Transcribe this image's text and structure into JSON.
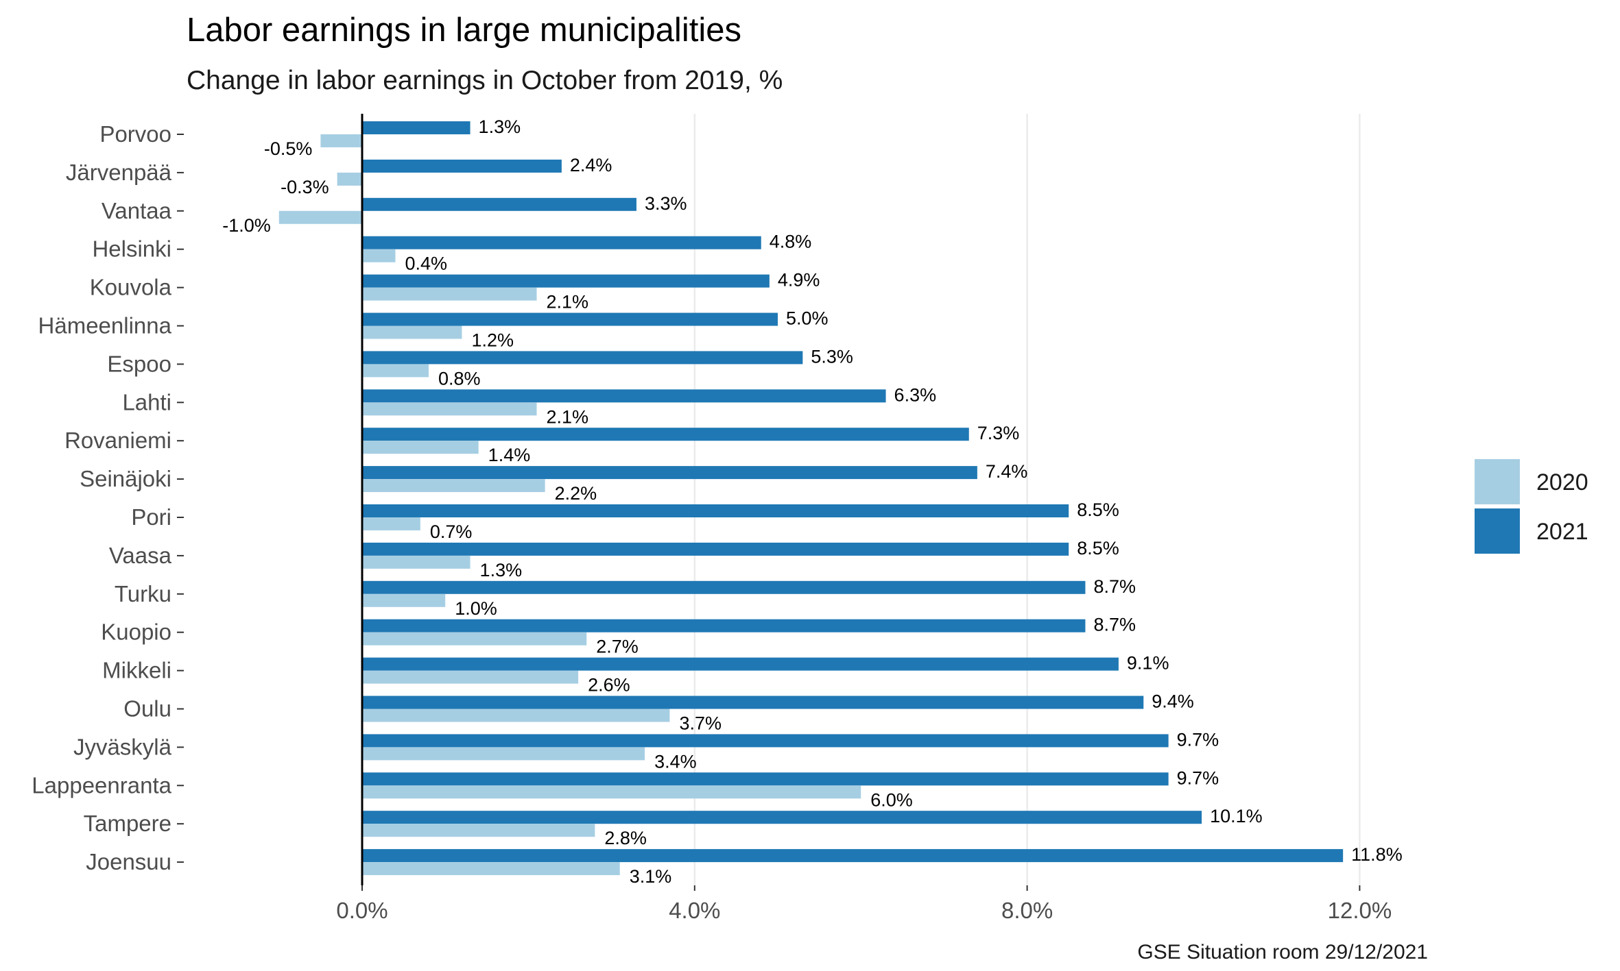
{
  "chart_data": {
    "type": "bar",
    "orientation": "horizontal",
    "title": "Labor earnings in large municipalities",
    "subtitle": "Change in labor earnings in October from 2019, %",
    "caption": "GSE Situation room 29/12/2021",
    "categories": [
      "Porvoo",
      "Järvenpää",
      "Vantaa",
      "Helsinki",
      "Kouvola",
      "Hämeenlinna",
      "Espoo",
      "Lahti",
      "Rovaniemi",
      "Seinäjoki",
      "Pori",
      "Vaasa",
      "Turku",
      "Kuopio",
      "Mikkeli",
      "Oulu",
      "Jyväskylä",
      "Lappeenranta",
      "Tampere",
      "Joensuu"
    ],
    "series": [
      {
        "name": "2020",
        "color": "#a6cee3",
        "values": [
          -0.5,
          -0.3,
          -1.0,
          0.4,
          2.1,
          1.2,
          0.8,
          2.1,
          1.4,
          2.2,
          0.7,
          1.3,
          1.0,
          2.7,
          2.6,
          3.7,
          3.4,
          6.0,
          2.8,
          3.1
        ],
        "labels": [
          "-0.5%",
          "-0.3%",
          "-1.0%",
          "0.4%",
          "2.1%",
          "1.2%",
          "0.8%",
          "2.1%",
          "1.4%",
          "2.2%",
          "0.7%",
          "1.3%",
          "1.0%",
          "2.7%",
          "2.6%",
          "3.7%",
          "3.4%",
          "6.0%",
          "2.8%",
          "3.1%"
        ]
      },
      {
        "name": "2021",
        "color": "#1f78b4",
        "values": [
          1.3,
          2.4,
          3.3,
          4.8,
          4.9,
          5.0,
          5.3,
          6.3,
          7.3,
          7.4,
          8.5,
          8.5,
          8.7,
          8.7,
          9.1,
          9.4,
          9.7,
          9.7,
          10.1,
          11.8
        ],
        "labels": [
          "1.3%",
          "2.4%",
          "3.3%",
          "4.8%",
          "4.9%",
          "5.0%",
          "5.3%",
          "6.3%",
          "7.3%",
          "7.4%",
          "8.5%",
          "8.5%",
          "8.7%",
          "8.7%",
          "9.1%",
          "9.4%",
          "9.7%",
          "9.7%",
          "10.1%",
          "11.8%"
        ]
      }
    ],
    "xlim": [
      -2.1,
      14.6
    ],
    "xticks": [
      0,
      4,
      8,
      12
    ],
    "xtick_labels": [
      "0.0%",
      "4.0%",
      "8.0%",
      "12.0%"
    ],
    "grid": "vertical-major",
    "legend": {
      "position": "right",
      "entries": [
        "2020",
        "2021"
      ]
    }
  }
}
